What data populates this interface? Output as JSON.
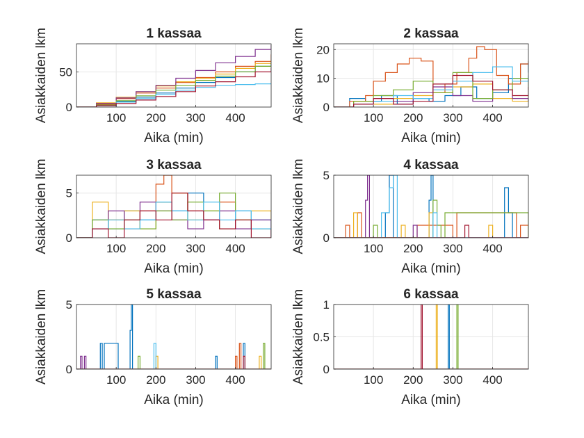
{
  "figure": {
    "background": "#ffffff",
    "axis_color": "#262626",
    "grid_color": "#e6e6e6"
  },
  "palette": [
    "#0072BD",
    "#D95319",
    "#EDB120",
    "#7E2F8E",
    "#77AC30",
    "#4DBEEE",
    "#A2142F"
  ],
  "chart_data": [
    {
      "type": "line",
      "step": true,
      "title": "1 kassaa",
      "xlabel": "Aika (min)",
      "ylabel": "Asiakkaiden lkm",
      "xlim": [
        0,
        490
      ],
      "ylim": [
        0,
        90
      ],
      "grid": true,
      "xticks": [
        100,
        200,
        300,
        400
      ],
      "yticks": [
        0,
        50
      ],
      "series": [
        {
          "x": [
            0,
            50,
            100,
            150,
            200,
            250,
            300,
            350,
            400,
            450,
            490
          ],
          "y": [
            0,
            3,
            8,
            14,
            20,
            27,
            35,
            42,
            50,
            58,
            65
          ]
        },
        {
          "x": [
            0,
            50,
            100,
            150,
            200,
            250,
            300,
            350,
            400,
            450,
            490
          ],
          "y": [
            0,
            4,
            12,
            20,
            27,
            35,
            42,
            50,
            58,
            65,
            75
          ]
        },
        {
          "x": [
            0,
            50,
            100,
            150,
            200,
            250,
            300,
            350,
            400,
            450,
            490
          ],
          "y": [
            0,
            6,
            14,
            22,
            30,
            36,
            41,
            47,
            55,
            62,
            67
          ]
        },
        {
          "x": [
            0,
            50,
            100,
            150,
            200,
            250,
            300,
            350,
            400,
            450,
            490
          ],
          "y": [
            0,
            5,
            13,
            22,
            31,
            41,
            52,
            63,
            72,
            82,
            88
          ]
        },
        {
          "x": [
            0,
            50,
            100,
            150,
            200,
            250,
            300,
            350,
            400,
            450,
            490
          ],
          "y": [
            0,
            3,
            9,
            16,
            24,
            31,
            38,
            44,
            50,
            58,
            63
          ]
        },
        {
          "x": [
            0,
            50,
            100,
            150,
            200,
            250,
            300,
            350,
            400,
            450,
            490
          ],
          "y": [
            0,
            2,
            7,
            12,
            18,
            24,
            28,
            31,
            32,
            33,
            34
          ]
        },
        {
          "x": [
            0,
            50,
            100,
            150,
            200,
            250,
            300,
            350,
            400,
            450,
            490
          ],
          "y": [
            0,
            2,
            5,
            10,
            15,
            22,
            30,
            36,
            43,
            50,
            56
          ]
        }
      ]
    },
    {
      "type": "line",
      "step": true,
      "title": "2 kassaa",
      "xlabel": "Aika (min)",
      "ylabel": "Asiakkaiden lkm",
      "xlim": [
        0,
        490
      ],
      "ylim": [
        0,
        22
      ],
      "grid": true,
      "xticks": [
        100,
        200,
        300,
        400
      ],
      "yticks": [
        0,
        10,
        20
      ],
      "series": [
        {
          "x": [
            0,
            40,
            80,
            120,
            160,
            200,
            240,
            280,
            320,
            360,
            400,
            440,
            470,
            490
          ],
          "y": [
            0,
            3,
            2,
            4,
            1,
            3,
            2,
            4,
            7,
            3,
            5,
            10,
            15,
            12
          ]
        },
        {
          "x": [
            0,
            40,
            80,
            100,
            130,
            160,
            190,
            220,
            250,
            280,
            310,
            340,
            360,
            380,
            410,
            440,
            470,
            490
          ],
          "y": [
            0,
            2,
            4,
            9,
            12,
            15,
            17,
            16,
            5,
            8,
            12,
            17,
            21,
            20,
            11,
            8,
            15,
            16
          ]
        },
        {
          "x": [
            0,
            50,
            100,
            150,
            200,
            250,
            300,
            350,
            400,
            450,
            490
          ],
          "y": [
            0,
            2,
            1,
            3,
            4,
            5,
            7,
            8,
            3,
            2,
            4
          ]
        },
        {
          "x": [
            0,
            50,
            100,
            150,
            200,
            250,
            300,
            350,
            400,
            450,
            490
          ],
          "y": [
            0,
            1,
            3,
            2,
            5,
            7,
            4,
            2,
            6,
            3,
            2
          ]
        },
        {
          "x": [
            0,
            50,
            100,
            150,
            200,
            250,
            300,
            350,
            400,
            450,
            490
          ],
          "y": [
            0,
            2,
            4,
            6,
            9,
            5,
            12,
            3,
            6,
            10,
            6
          ]
        },
        {
          "x": [
            0,
            50,
            100,
            150,
            200,
            250,
            300,
            350,
            400,
            450,
            490
          ],
          "y": [
            0,
            1,
            2,
            4,
            3,
            6,
            9,
            12,
            14,
            9,
            11
          ]
        },
        {
          "x": [
            0,
            50,
            100,
            150,
            200,
            250,
            300,
            350,
            400,
            450,
            490
          ],
          "y": [
            0,
            1,
            3,
            1,
            2,
            8,
            11,
            9,
            6,
            4,
            7
          ]
        }
      ]
    },
    {
      "type": "line",
      "step": true,
      "title": "3 kassaa",
      "xlabel": "Aika (min)",
      "ylabel": "Asiakkaiden lkm",
      "xlim": [
        0,
        490
      ],
      "ylim": [
        0,
        7
      ],
      "grid": true,
      "xticks": [
        100,
        200,
        300,
        400
      ],
      "yticks": [
        0,
        5
      ],
      "series": [
        {
          "x": [
            0,
            40,
            80,
            120,
            160,
            200,
            240,
            280,
            320,
            360,
            400,
            440,
            490
          ],
          "y": [
            0,
            2,
            1,
            3,
            2,
            4,
            3,
            5,
            2,
            1,
            3,
            2,
            1
          ]
        },
        {
          "x": [
            0,
            40,
            80,
            120,
            160,
            200,
            220,
            240,
            280,
            320,
            360,
            400,
            440,
            490
          ],
          "y": [
            0,
            1,
            2,
            1,
            3,
            6,
            7,
            5,
            3,
            2,
            4,
            2,
            1,
            0
          ]
        },
        {
          "x": [
            0,
            40,
            80,
            120,
            160,
            200,
            240,
            280,
            320,
            360,
            400,
            440,
            490
          ],
          "y": [
            0,
            4,
            2,
            3,
            1,
            4,
            5,
            2,
            3,
            1,
            2,
            3,
            2
          ]
        },
        {
          "x": [
            0,
            40,
            80,
            120,
            160,
            200,
            240,
            280,
            320,
            360,
            400,
            440,
            490
          ],
          "y": [
            0,
            1,
            3,
            2,
            4,
            3,
            2,
            1,
            2,
            3,
            1,
            2,
            0
          ]
        },
        {
          "x": [
            0,
            40,
            80,
            120,
            160,
            200,
            240,
            280,
            320,
            360,
            400,
            440,
            490
          ],
          "y": [
            0,
            2,
            1,
            2,
            1,
            3,
            2,
            4,
            3,
            5,
            2,
            1,
            1
          ]
        },
        {
          "x": [
            0,
            40,
            80,
            120,
            160,
            200,
            240,
            280,
            320,
            360,
            400,
            440,
            490
          ],
          "y": [
            0,
            1,
            2,
            1,
            2,
            4,
            3,
            2,
            4,
            2,
            3,
            1,
            0
          ]
        },
        {
          "x": [
            0,
            40,
            80,
            120,
            160,
            200,
            240,
            280,
            320,
            360,
            400,
            440,
            490
          ],
          "y": [
            0,
            1,
            0,
            2,
            3,
            2,
            5,
            3,
            2,
            1,
            2,
            0,
            1
          ]
        }
      ]
    },
    {
      "type": "line",
      "step": true,
      "title": "4 kassaa",
      "xlabel": "Aika (min)",
      "ylabel": "Asiakkaiden lkm",
      "xlim": [
        0,
        490
      ],
      "ylim": [
        0,
        5
      ],
      "grid": true,
      "xticks": [
        100,
        200,
        300,
        400
      ],
      "yticks": [
        0,
        5
      ],
      "series": [
        {
          "x": [
            0,
            100,
            130,
            140,
            150,
            200,
            240,
            245,
            250,
            300,
            400,
            430,
            440,
            450,
            490
          ],
          "y": [
            0,
            0,
            2,
            5,
            0,
            0,
            3,
            5,
            0,
            0,
            0,
            4,
            2,
            0,
            0
          ]
        },
        {
          "x": [
            0,
            30,
            40,
            60,
            70,
            200,
            210,
            300,
            310,
            460,
            470,
            490
          ],
          "y": [
            0,
            1,
            0,
            2,
            0,
            0,
            1,
            0,
            2,
            0,
            1,
            0
          ]
        },
        {
          "x": [
            0,
            50,
            60,
            170,
            180,
            240,
            250,
            390,
            400,
            490
          ],
          "y": [
            0,
            2,
            0,
            1,
            0,
            2,
            0,
            1,
            0,
            0
          ]
        },
        {
          "x": [
            0,
            70,
            80,
            85,
            90,
            200,
            210,
            490
          ],
          "y": [
            0,
            0,
            3,
            5,
            0,
            1,
            0,
            0
          ]
        },
        {
          "x": [
            0,
            100,
            110,
            250,
            260,
            270,
            280,
            490
          ],
          "y": [
            0,
            1,
            0,
            3,
            1,
            0,
            2,
            0
          ]
        },
        {
          "x": [
            0,
            120,
            140,
            150,
            160,
            250,
            260,
            490
          ],
          "y": [
            0,
            2,
            4,
            5,
            0,
            2,
            0,
            0
          ]
        },
        {
          "x": [
            0,
            330,
            340,
            490
          ],
          "y": [
            0,
            1,
            0,
            0
          ]
        }
      ]
    },
    {
      "type": "line",
      "step": true,
      "title": "5 kassaa",
      "xlabel": "Aika (min)",
      "ylabel": "Asiakkaiden lkm",
      "xlim": [
        0,
        490
      ],
      "ylim": [
        0,
        5
      ],
      "grid": true,
      "xticks": [
        100,
        200,
        300,
        400
      ],
      "yticks": [
        0,
        5
      ],
      "series": [
        {
          "x": [
            0,
            60,
            65,
            70,
            100,
            105,
            135,
            138,
            141,
            350,
            354,
            420,
            424,
            490
          ],
          "y": [
            0,
            2,
            0,
            2,
            2,
            0,
            3,
            5,
            0,
            1,
            0,
            2,
            0,
            0
          ]
        },
        {
          "x": [
            0,
            400,
            404,
            410,
            414,
            490
          ],
          "y": [
            0,
            1,
            0,
            2,
            0,
            0
          ]
        },
        {
          "x": [
            0,
            200,
            205,
            460,
            465,
            490
          ],
          "y": [
            0,
            1,
            0,
            1,
            0,
            0
          ]
        },
        {
          "x": [
            0,
            10,
            14,
            20,
            24,
            490
          ],
          "y": [
            0,
            1,
            0,
            1,
            0,
            0
          ]
        },
        {
          "x": [
            0,
            155,
            160,
            470,
            474,
            490
          ],
          "y": [
            0,
            1,
            0,
            2,
            0,
            0
          ]
        },
        {
          "x": [
            0,
            195,
            200,
            490
          ],
          "y": [
            0,
            2,
            0,
            0
          ]
        },
        {
          "x": [
            0,
            420,
            424,
            490
          ],
          "y": [
            0,
            1,
            0,
            0
          ]
        }
      ]
    },
    {
      "type": "line",
      "step": true,
      "title": "6 kassaa",
      "xlabel": "Aika (min)",
      "ylabel": "Asiakkaiden lkm",
      "xlim": [
        0,
        490
      ],
      "ylim": [
        0,
        1
      ],
      "grid": true,
      "xticks": [
        100,
        200,
        300,
        400
      ],
      "yticks": [
        0,
        0.5,
        1
      ],
      "series": [
        {
          "x": [
            0,
            288,
            291,
            490
          ],
          "y": [
            0,
            1,
            0,
            0
          ]
        },
        {
          "x": [
            0,
            490
          ],
          "y": [
            0,
            0
          ]
        },
        {
          "x": [
            0,
            258,
            261,
            490
          ],
          "y": [
            0,
            1,
            0,
            0
          ]
        },
        {
          "x": [
            0,
            490
          ],
          "y": [
            0,
            0
          ]
        },
        {
          "x": [
            0,
            310,
            313,
            490
          ],
          "y": [
            0,
            1,
            0,
            0
          ]
        },
        {
          "x": [
            0,
            490
          ],
          "y": [
            0,
            0
          ]
        },
        {
          "x": [
            0,
            220,
            223,
            490
          ],
          "y": [
            0,
            1,
            0,
            0
          ]
        }
      ]
    }
  ]
}
